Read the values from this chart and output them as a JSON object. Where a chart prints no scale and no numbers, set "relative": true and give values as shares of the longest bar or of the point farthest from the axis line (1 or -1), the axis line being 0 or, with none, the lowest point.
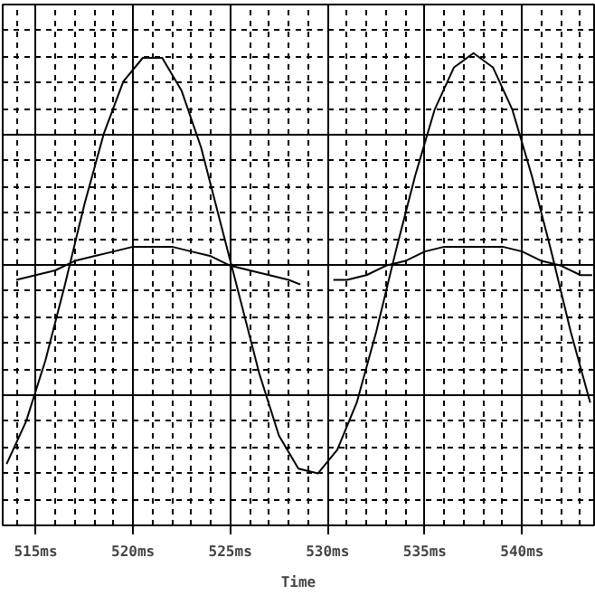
{
  "chart_data": {
    "type": "line",
    "xlabel": "Time",
    "relative": true,
    "grid": true,
    "xlim": [
      513.3,
      543.7
    ],
    "xticks": [
      {
        "value": 515,
        "label": "515ms"
      },
      {
        "value": 520,
        "label": "520ms"
      },
      {
        "value": 525,
        "label": "525ms"
      },
      {
        "value": 530,
        "label": "530ms"
      },
      {
        "value": 535,
        "label": "535ms"
      },
      {
        "value": 540,
        "label": "540ms"
      }
    ],
    "series": [
      {
        "color": "#000000",
        "x": [
          513.5,
          514.5,
          515.5,
          516.5,
          517.5,
          518.5,
          519.5,
          520.5,
          521.5,
          522.5,
          523.5,
          524.5,
          525.5,
          526.5,
          527.5,
          528.5,
          529.5,
          530.5,
          531.5,
          532.5,
          533.5,
          534.5,
          535.5,
          536.5,
          537.5,
          538.5,
          539.5,
          540.5,
          541.5,
          542.5,
          543.5
        ],
        "values": [
          0.13,
          0.22,
          0.35,
          0.51,
          0.68,
          0.83,
          0.94,
          0.99,
          0.99,
          0.92,
          0.8,
          0.64,
          0.48,
          0.32,
          0.19,
          0.12,
          0.11,
          0.16,
          0.26,
          0.41,
          0.58,
          0.74,
          0.88,
          0.97,
          1.0,
          0.97,
          0.88,
          0.74,
          0.58,
          0.41,
          0.26
        ]
      },
      {
        "color": "#000000",
        "x": [
          514.0,
          515,
          516,
          517,
          518,
          519,
          520,
          521,
          522,
          523,
          524,
          525,
          526,
          527,
          528,
          528.6,
          529.5,
          530.3,
          531,
          532,
          533,
          534,
          535,
          536,
          537,
          538,
          539,
          540,
          541,
          542,
          543,
          543.6
        ],
        "values": [
          0.52,
          0.53,
          0.54,
          0.56,
          0.57,
          0.58,
          0.59,
          0.59,
          0.59,
          0.58,
          0.57,
          0.55,
          0.54,
          0.53,
          0.52,
          0.51,
          null,
          0.52,
          0.52,
          0.53,
          0.55,
          0.56,
          0.58,
          0.59,
          0.59,
          0.59,
          0.59,
          0.58,
          0.56,
          0.55,
          0.53,
          0.53
        ]
      }
    ]
  }
}
